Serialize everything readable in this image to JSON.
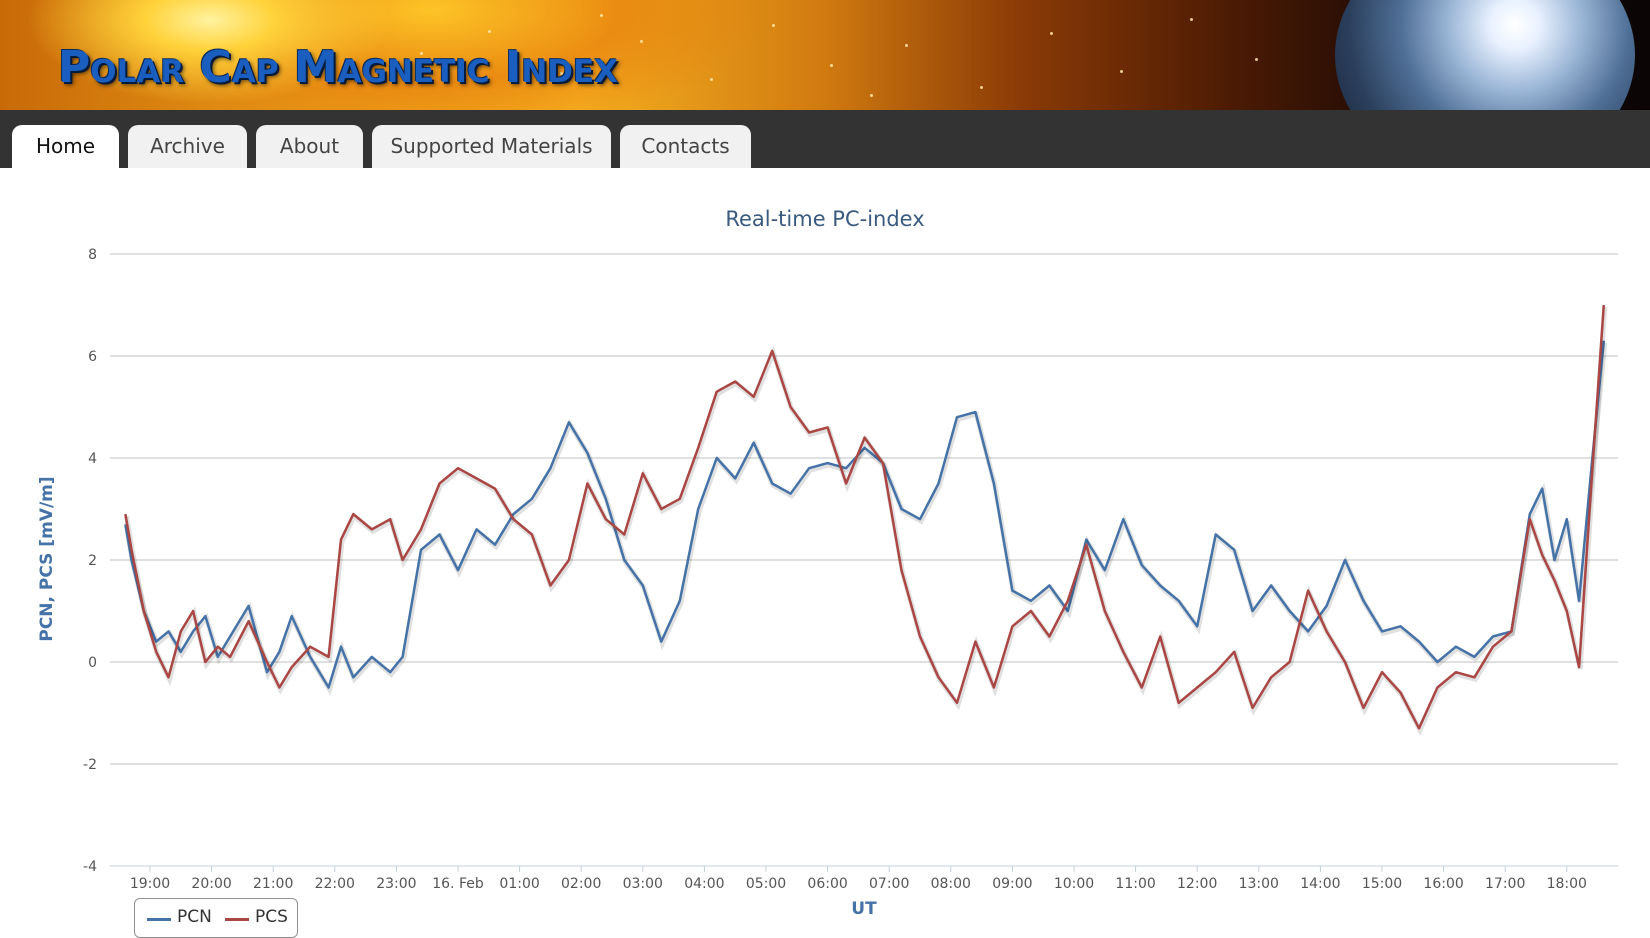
{
  "site": {
    "title": "Polar Cap Magnetic Index"
  },
  "nav": {
    "tabs": [
      {
        "label": "Home",
        "active": true
      },
      {
        "label": "Archive",
        "active": false
      },
      {
        "label": "About",
        "active": false
      },
      {
        "label": "Supported Materials",
        "active": false
      },
      {
        "label": "Contacts",
        "active": false
      }
    ]
  },
  "colors": {
    "pcn": "#4572a7",
    "pcs": "#aa4643",
    "title": "#3a5a80",
    "axis_title": "#4572a7",
    "grid": "#c0c0c0",
    "nav_bg": "#333333"
  },
  "chart_data": {
    "type": "line",
    "title": "Real-time PC-index",
    "xlabel": "UT",
    "ylabel": "PCN, PCS [mV/m]",
    "ylim": [
      -4,
      8
    ],
    "yticks": [
      "8",
      "6",
      "4",
      "2",
      "0",
      "-2",
      "-4"
    ],
    "xticks": [
      "19:00",
      "20:00",
      "21:00",
      "22:00",
      "23:00",
      "16. Feb",
      "01:00",
      "02:00",
      "03:00",
      "04:00",
      "05:00",
      "06:00",
      "07:00",
      "08:00",
      "09:00",
      "10:00",
      "11:00",
      "12:00",
      "13:00",
      "14:00",
      "15:00",
      "16:00",
      "17:00",
      "18:00"
    ],
    "x_unit": "hours since 15 Feb 18:00 UT",
    "grid": true,
    "legend": "bottom-left",
    "series": [
      {
        "name": "PCN",
        "x": [
          0.6,
          0.7,
          0.9,
          1.1,
          1.3,
          1.5,
          1.7,
          1.9,
          2.1,
          2.3,
          2.6,
          2.9,
          3.1,
          3.3,
          3.6,
          3.9,
          4.1,
          4.3,
          4.6,
          4.9,
          5.1,
          5.4,
          5.7,
          6.0,
          6.3,
          6.6,
          6.9,
          7.2,
          7.5,
          7.8,
          8.1,
          8.4,
          8.7,
          9.0,
          9.3,
          9.6,
          9.9,
          10.2,
          10.5,
          10.8,
          11.1,
          11.4,
          11.7,
          12.0,
          12.3,
          12.6,
          12.9,
          13.2,
          13.5,
          13.8,
          14.1,
          14.4,
          14.7,
          15.0,
          15.3,
          15.6,
          15.9,
          16.2,
          16.5,
          16.8,
          17.1,
          17.4,
          17.7,
          18.0,
          18.3,
          18.6,
          18.9,
          19.2,
          19.5,
          19.8,
          20.1,
          20.4,
          20.7,
          21.0,
          21.3,
          21.6,
          21.9,
          22.2,
          22.5,
          22.8,
          23.1,
          23.4,
          23.6,
          23.8,
          24.0,
          24.2,
          24.4,
          24.6
        ],
        "values": [
          2.7,
          2.0,
          1.0,
          0.4,
          0.6,
          0.2,
          0.6,
          0.9,
          0.1,
          0.5,
          1.1,
          -0.2,
          0.2,
          0.9,
          0.1,
          -0.5,
          0.3,
          -0.3,
          0.1,
          -0.2,
          0.1,
          2.2,
          2.5,
          1.8,
          2.6,
          2.3,
          2.9,
          3.2,
          3.8,
          4.7,
          4.1,
          3.2,
          2.0,
          1.5,
          0.4,
          1.2,
          3.0,
          4.0,
          3.6,
          4.3,
          3.5,
          3.3,
          3.8,
          3.9,
          3.8,
          4.2,
          3.9,
          3.0,
          2.8,
          3.5,
          4.8,
          4.9,
          3.5,
          1.4,
          1.2,
          1.5,
          1.0,
          2.4,
          1.8,
          2.8,
          1.9,
          1.5,
          1.2,
          0.7,
          2.5,
          2.2,
          1.0,
          1.5,
          1.0,
          0.6,
          1.1,
          2.0,
          1.2,
          0.6,
          0.7,
          0.4,
          0.0,
          0.3,
          0.1,
          0.5,
          0.6,
          2.9,
          3.4,
          2.0,
          2.8,
          1.2,
          3.8,
          6.3
        ]
      },
      {
        "name": "PCS",
        "x": [
          0.6,
          0.7,
          0.9,
          1.1,
          1.3,
          1.5,
          1.7,
          1.9,
          2.1,
          2.3,
          2.6,
          2.9,
          3.1,
          3.3,
          3.6,
          3.9,
          4.1,
          4.3,
          4.6,
          4.9,
          5.1,
          5.4,
          5.7,
          6.0,
          6.3,
          6.6,
          6.9,
          7.2,
          7.5,
          7.8,
          8.1,
          8.4,
          8.7,
          9.0,
          9.3,
          9.6,
          9.9,
          10.2,
          10.5,
          10.8,
          11.1,
          11.4,
          11.7,
          12.0,
          12.3,
          12.6,
          12.9,
          13.2,
          13.5,
          13.8,
          14.1,
          14.4,
          14.7,
          15.0,
          15.3,
          15.6,
          15.9,
          16.2,
          16.5,
          16.8,
          17.1,
          17.4,
          17.7,
          18.0,
          18.3,
          18.6,
          18.9,
          19.2,
          19.5,
          19.8,
          20.1,
          20.4,
          20.7,
          21.0,
          21.3,
          21.6,
          21.9,
          22.2,
          22.5,
          22.8,
          23.1,
          23.4,
          23.6,
          23.8,
          24.0,
          24.2,
          24.4,
          24.6
        ],
        "values": [
          2.9,
          2.2,
          1.0,
          0.2,
          -0.3,
          0.6,
          1.0,
          0.0,
          0.3,
          0.1,
          0.8,
          0.0,
          -0.5,
          -0.1,
          0.3,
          0.1,
          2.4,
          2.9,
          2.6,
          2.8,
          2.0,
          2.6,
          3.5,
          3.8,
          3.6,
          3.4,
          2.8,
          2.5,
          1.5,
          2.0,
          3.5,
          2.8,
          2.5,
          3.7,
          3.0,
          3.2,
          4.2,
          5.3,
          5.5,
          5.2,
          6.1,
          5.0,
          4.5,
          4.6,
          3.5,
          4.4,
          3.9,
          1.8,
          0.5,
          -0.3,
          -0.8,
          0.4,
          -0.5,
          0.7,
          1.0,
          0.5,
          1.2,
          2.3,
          1.0,
          0.2,
          -0.5,
          0.5,
          -0.8,
          -0.5,
          -0.2,
          0.2,
          -0.9,
          -0.3,
          0.0,
          1.4,
          0.6,
          0.0,
          -0.9,
          -0.2,
          -0.6,
          -1.3,
          -0.5,
          -0.2,
          -0.3,
          0.3,
          0.6,
          2.8,
          2.1,
          1.6,
          1.0,
          -0.1,
          3.5,
          7.0
        ]
      }
    ]
  }
}
